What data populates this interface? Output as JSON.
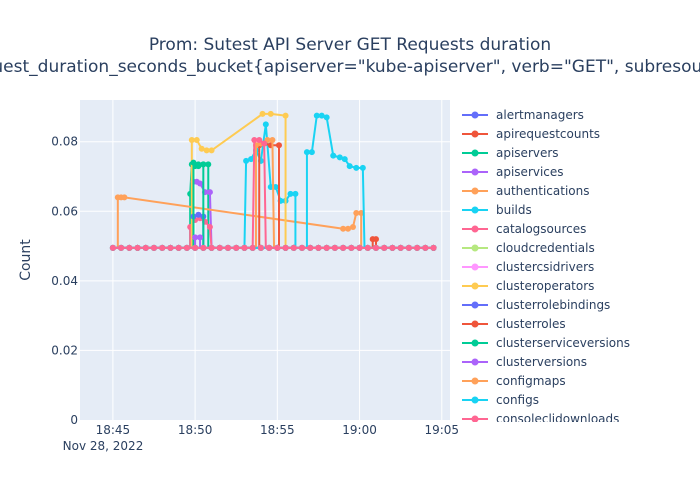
{
  "chart_data": {
    "type": "line",
    "title_line1": "Prom: Sutest API Server GET Requests duration",
    "title_line2": "request_duration_seconds_bucket{apiserver=\"kube-apiserver\", verb=\"GET\", subresource!",
    "xlabel": "",
    "ylabel": "Count",
    "ylim": [
      0,
      0.092
    ],
    "y_ticks": [
      {
        "value": 0,
        "label": "0"
      },
      {
        "value": 0.02,
        "label": "0.02"
      },
      {
        "value": 0.04,
        "label": "0.04"
      },
      {
        "value": 0.06,
        "label": "0.06"
      },
      {
        "value": 0.08,
        "label": "0.08"
      }
    ],
    "x_ticks": [
      {
        "value": "18:45",
        "label": "18:45"
      },
      {
        "value": "18:50",
        "label": "18:50"
      },
      {
        "value": "18:55",
        "label": "18:55"
      },
      {
        "value": "19:00",
        "label": "19:00"
      },
      {
        "value": "19:05",
        "label": "19:05"
      }
    ],
    "x_date_label": "Nov 28, 2022",
    "xlim": [
      "18:43",
      "19:05.5"
    ],
    "baseline": 0.0495,
    "x_start": "18:45",
    "x_end": "19:04.5",
    "grid": true,
    "legend_position": "right",
    "series": [
      {
        "name": "alertmanagers",
        "color": "#636efa",
        "values": []
      },
      {
        "name": "apirequestcounts",
        "color": "#EF553B",
        "values": [
          {
            "x": "19:00.8",
            "y": 0.052
          },
          {
            "x": "19:01.0",
            "y": 0.052
          }
        ]
      },
      {
        "name": "apiservers",
        "color": "#00cc96",
        "values": [
          {
            "x": "18:49.7",
            "y": 0.065
          },
          {
            "x": "18:49.8",
            "y": 0.0735
          },
          {
            "x": "18:50.0",
            "y": 0.073
          },
          {
            "x": "18:50.2",
            "y": 0.073
          },
          {
            "x": "18:50.5",
            "y": 0.0735
          },
          {
            "x": "18:50.8",
            "y": 0.0735
          }
        ]
      },
      {
        "name": "apiservices",
        "color": "#ab63fa",
        "values": [
          {
            "x": "18:49.9",
            "y": 0.0685
          },
          {
            "x": "18:50.1",
            "y": 0.0685
          },
          {
            "x": "18:50.3",
            "y": 0.068
          },
          {
            "x": "18:50.6",
            "y": 0.0655
          },
          {
            "x": "18:50.9",
            "y": 0.0655
          }
        ]
      },
      {
        "name": "authentications",
        "color": "#FFA15A",
        "values": [
          {
            "x": "18:45.3",
            "y": 0.064
          },
          {
            "x": "18:45.5",
            "y": 0.064
          },
          {
            "x": "18:45.7",
            "y": 0.064
          },
          {
            "x": "18:59.0",
            "y": 0.055
          },
          {
            "x": "18:59.3",
            "y": 0.055
          },
          {
            "x": "18:59.6",
            "y": 0.0555
          },
          {
            "x": "18:59.8",
            "y": 0.0595
          },
          {
            "x": "19:00.1",
            "y": 0.0595
          }
        ]
      },
      {
        "name": "builds",
        "color": "#19d3f3",
        "values": [
          {
            "x": "18:53.1",
            "y": 0.0745
          },
          {
            "x": "18:53.4",
            "y": 0.075
          },
          {
            "x": "18:53.7",
            "y": 0.0775
          },
          {
            "x": "18:54.0",
            "y": 0.0745
          },
          {
            "x": "18:54.3",
            "y": 0.085
          },
          {
            "x": "18:54.6",
            "y": 0.067
          },
          {
            "x": "18:54.9",
            "y": 0.067
          },
          {
            "x": "18:55.2",
            "y": 0.063
          },
          {
            "x": "18:55.5",
            "y": 0.063
          },
          {
            "x": "18:55.8",
            "y": 0.065
          },
          {
            "x": "18:56.1",
            "y": 0.065
          }
        ]
      },
      {
        "name": "catalogsources",
        "color": "#FF6692",
        "values": [
          {
            "x": "18:49.7",
            "y": 0.0555
          },
          {
            "x": "18:50.0",
            "y": 0.0575
          },
          {
            "x": "18:50.3",
            "y": 0.058
          },
          {
            "x": "18:50.6",
            "y": 0.057
          },
          {
            "x": "18:50.9",
            "y": 0.0555
          }
        ]
      },
      {
        "name": "cloudcredentials",
        "color": "#B6E880",
        "values": []
      },
      {
        "name": "clustercsidrivers",
        "color": "#FF97FF",
        "values": []
      },
      {
        "name": "clusteroperators",
        "color": "#FECB52",
        "values": [
          {
            "x": "18:49.8",
            "y": 0.0805
          },
          {
            "x": "18:50.1",
            "y": 0.0805
          },
          {
            "x": "18:50.4",
            "y": 0.078
          },
          {
            "x": "18:50.7",
            "y": 0.0775
          },
          {
            "x": "18:51.0",
            "y": 0.0775
          },
          {
            "x": "18:54.1",
            "y": 0.088
          },
          {
            "x": "18:54.6",
            "y": 0.088
          },
          {
            "x": "18:55.5",
            "y": 0.0875
          }
        ]
      },
      {
        "name": "clusterrolebindings",
        "color": "#636efa",
        "values": [
          {
            "x": "18:49.9",
            "y": 0.0585
          },
          {
            "x": "18:50.2",
            "y": 0.059
          },
          {
            "x": "18:50.5",
            "y": 0.0585
          }
        ]
      },
      {
        "name": "clusterroles",
        "color": "#EF553B",
        "values": [
          {
            "x": "18:53.9",
            "y": 0.079
          },
          {
            "x": "18:54.2",
            "y": 0.0795
          },
          {
            "x": "18:54.6",
            "y": 0.079
          },
          {
            "x": "18:55.1",
            "y": 0.079
          }
        ]
      },
      {
        "name": "clusterserviceversions",
        "color": "#00cc96",
        "values": [
          {
            "x": "18:49.9",
            "y": 0.074
          },
          {
            "x": "18:50.2",
            "y": 0.0735
          },
          {
            "x": "18:50.5",
            "y": 0.0735
          }
        ]
      },
      {
        "name": "clusterversions",
        "color": "#ab63fa",
        "values": [
          {
            "x": "18:50.0",
            "y": 0.0525
          },
          {
            "x": "18:50.3",
            "y": 0.0525
          }
        ]
      },
      {
        "name": "configmaps",
        "color": "#FFA15A",
        "values": [
          {
            "x": "18:53.7",
            "y": 0.079
          },
          {
            "x": "18:54.0",
            "y": 0.0795
          },
          {
            "x": "18:54.4",
            "y": 0.0805
          },
          {
            "x": "18:54.7",
            "y": 0.0805
          }
        ]
      },
      {
        "name": "configs",
        "color": "#19d3f3",
        "values": [
          {
            "x": "18:56.8",
            "y": 0.077
          },
          {
            "x": "18:57.1",
            "y": 0.077
          },
          {
            "x": "18:57.4",
            "y": 0.0875
          },
          {
            "x": "18:57.7",
            "y": 0.0875
          },
          {
            "x": "18:58.0",
            "y": 0.087
          },
          {
            "x": "18:58.4",
            "y": 0.076
          },
          {
            "x": "18:58.8",
            "y": 0.0755
          },
          {
            "x": "18:59.1",
            "y": 0.075
          },
          {
            "x": "18:59.4",
            "y": 0.073
          },
          {
            "x": "18:59.8",
            "y": 0.0725
          },
          {
            "x": "19:00.2",
            "y": 0.0725
          }
        ]
      },
      {
        "name": "consoleclidownloads",
        "color": "#FF6692",
        "values": [
          {
            "x": "18:53.6",
            "y": 0.0805
          },
          {
            "x": "18:53.9",
            "y": 0.0805
          },
          {
            "x": "18:54.2",
            "y": 0.0795
          }
        ]
      }
    ]
  }
}
